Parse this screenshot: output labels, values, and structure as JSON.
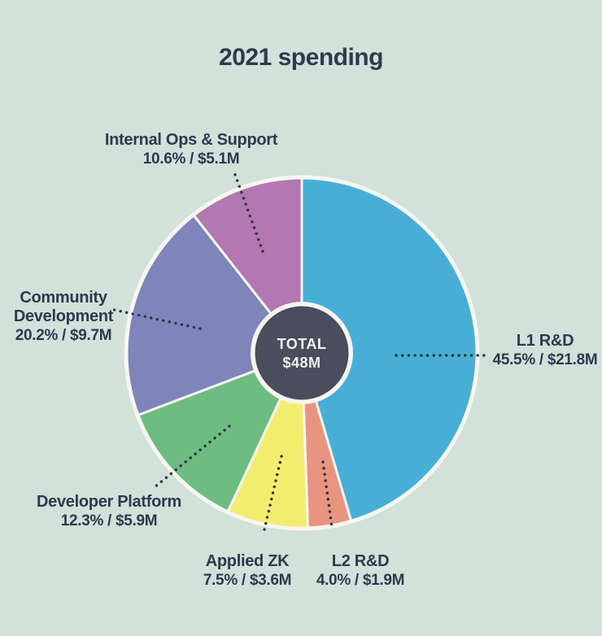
{
  "title": "2021 spending",
  "colors": {
    "background": "#d2e1da",
    "text": "#2d3a4d",
    "divider": "#f7f6f0",
    "center_circle": "#494d5d",
    "center_text": "#f3f2ed",
    "leader_dot": "#2c3444"
  },
  "chart_data": {
    "type": "pie",
    "title": "2021 spending",
    "donut": true,
    "start": "top",
    "direction": "clockwise",
    "total_label": "TOTAL",
    "total_value": "$48M",
    "total_musd": 48,
    "segments": [
      {
        "label": "L1 R&D",
        "percent": 45.5,
        "value_musd": 21.8,
        "detail": "45.5% / $21.8M",
        "color": "#47afd5"
      },
      {
        "label": "L2 R&D",
        "percent": 4.0,
        "value_musd": 1.9,
        "detail": "4.0% / $1.9M",
        "color": "#e8947f"
      },
      {
        "label": "Applied ZK",
        "percent": 7.5,
        "value_musd": 3.6,
        "detail": "7.5% / $3.6M",
        "color": "#f3ed6f"
      },
      {
        "label": "Developer Platform",
        "percent": 12.3,
        "value_musd": 5.9,
        "detail": "12.3% / $5.9M",
        "color": "#6dbc82"
      },
      {
        "label": "Community Development",
        "percent": 20.2,
        "value_musd": 9.7,
        "detail": "20.2% / $9.7M",
        "color": "#7f84ba"
      },
      {
        "label": "Internal Ops & Support",
        "percent": 10.6,
        "value_musd": 5.1,
        "detail": "10.6% / $5.1M",
        "color": "#b377b1"
      }
    ]
  }
}
